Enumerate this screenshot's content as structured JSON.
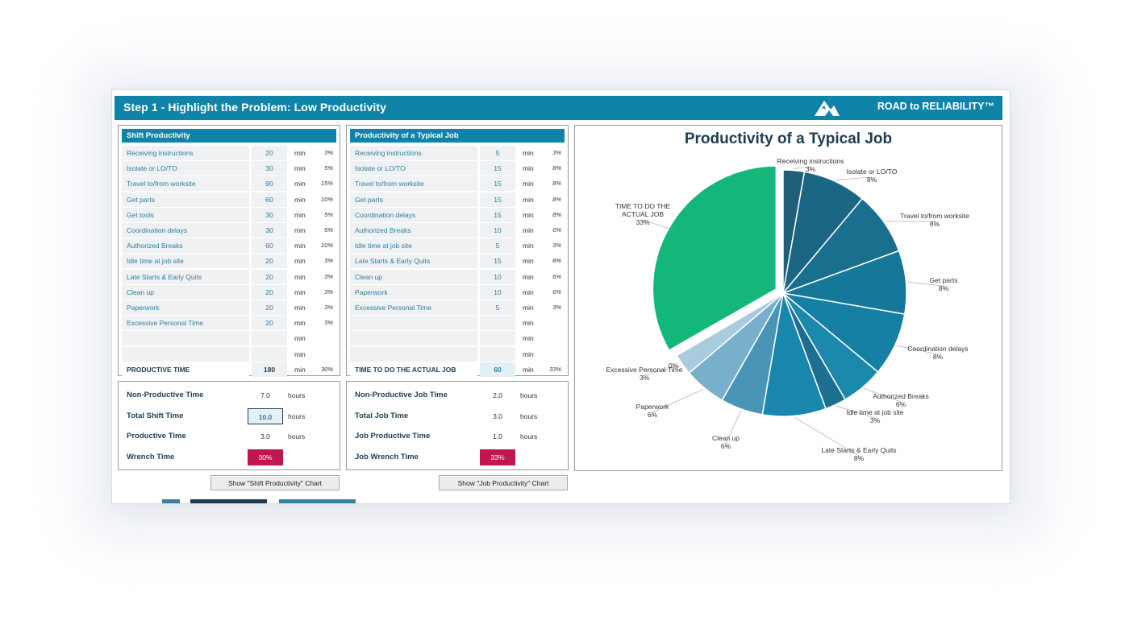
{
  "header": {
    "title": "Step 1 - Highlight the Problem: Low Productivity",
    "brand": "ROAD to RELIABILITY™",
    "logo_icon": "mountain-icon"
  },
  "shift": {
    "head": "Shift Productivity",
    "rows": [
      {
        "label": "Receiving instructions",
        "value": "20",
        "unit": "min",
        "pct": "3%"
      },
      {
        "label": "Isolate or LO/TO",
        "value": "30",
        "unit": "min",
        "pct": "5%"
      },
      {
        "label": "Travel to/from worksite",
        "value": "90",
        "unit": "min",
        "pct": "15%"
      },
      {
        "label": "Get parts",
        "value": "60",
        "unit": "min",
        "pct": "10%"
      },
      {
        "label": "Get tools",
        "value": "30",
        "unit": "min",
        "pct": "5%"
      },
      {
        "label": "Coordination delays",
        "value": "30",
        "unit": "min",
        "pct": "5%"
      },
      {
        "label": "Authorized Breaks",
        "value": "60",
        "unit": "min",
        "pct": "10%"
      },
      {
        "label": "Idle time at job site",
        "value": "20",
        "unit": "min",
        "pct": "3%"
      },
      {
        "label": "Late Starts & Early Quits",
        "value": "20",
        "unit": "min",
        "pct": "3%"
      },
      {
        "label": "Clean up",
        "value": "20",
        "unit": "min",
        "pct": "3%"
      },
      {
        "label": "Paperwork",
        "value": "20",
        "unit": "min",
        "pct": "3%"
      },
      {
        "label": "Excessive Personal Time",
        "value": "20",
        "unit": "min",
        "pct": "3%"
      },
      {
        "label": "",
        "value": "",
        "unit": "min",
        "pct": ""
      },
      {
        "label": "",
        "value": "",
        "unit": "min",
        "pct": ""
      }
    ],
    "total": {
      "label": "PRODUCTIVE TIME",
      "value": "180",
      "unit": "min",
      "pct": "30%"
    },
    "summary": [
      {
        "label": "Non-Productive Time",
        "value": "7.0",
        "unit": "hours"
      },
      {
        "label": "Total Shift Time",
        "value": "10.0",
        "unit": "hours"
      },
      {
        "label": "Productive Time",
        "value": "3.0",
        "unit": "hours"
      },
      {
        "label": "Wrench Time",
        "value": "30%",
        "unit": ""
      }
    ],
    "button": "Show \"Shift Productivity\" Chart"
  },
  "job": {
    "head": "Productivity of a Typical Job",
    "rows": [
      {
        "label": "Receiving instructions",
        "value": "5",
        "unit": "min",
        "pct": "3%"
      },
      {
        "label": "Isolate or LO/TO",
        "value": "15",
        "unit": "min",
        "pct": "8%"
      },
      {
        "label": "Travel to/from worksite",
        "value": "15",
        "unit": "min",
        "pct": "8%"
      },
      {
        "label": "Get parts",
        "value": "15",
        "unit": "min",
        "pct": "8%"
      },
      {
        "label": "Coordination delays",
        "value": "15",
        "unit": "min",
        "pct": "8%"
      },
      {
        "label": "Authorized Breaks",
        "value": "10",
        "unit": "min",
        "pct": "6%"
      },
      {
        "label": "Idle time at job site",
        "value": "5",
        "unit": "min",
        "pct": "3%"
      },
      {
        "label": "Late Starts & Early Quits",
        "value": "15",
        "unit": "min",
        "pct": "8%"
      },
      {
        "label": "Clean up",
        "value": "10",
        "unit": "min",
        "pct": "6%"
      },
      {
        "label": "Paperwork",
        "value": "10",
        "unit": "min",
        "pct": "6%"
      },
      {
        "label": "Excessive Personal Time",
        "value": "5",
        "unit": "min",
        "pct": "3%"
      },
      {
        "label": "",
        "value": "",
        "unit": "min",
        "pct": ""
      },
      {
        "label": "",
        "value": "",
        "unit": "min",
        "pct": ""
      },
      {
        "label": "",
        "value": "",
        "unit": "min",
        "pct": ""
      }
    ],
    "total": {
      "label": "TIME TO DO THE ACTUAL JOB",
      "value": "60",
      "unit": "min",
      "pct": "33%"
    },
    "summary": [
      {
        "label": "Non-Productive Job Time",
        "value": "2.0",
        "unit": "hours"
      },
      {
        "label": "Total Job Time",
        "value": "3.0",
        "unit": "hours"
      },
      {
        "label": "Job Productive Time",
        "value": "1.0",
        "unit": "hours"
      },
      {
        "label": "Job Wrench Time",
        "value": "33%",
        "unit": ""
      }
    ],
    "button": "Show \"Job Productivity\" Chart"
  },
  "colors": {
    "accent": "#0f84a8",
    "highlight": "#c0174e",
    "pie_green": "#14b77a"
  },
  "chart_data": {
    "type": "pie",
    "title": "Productivity of a Typical Job",
    "slices": [
      {
        "label": "Receiving instructions",
        "value": 5,
        "pct": "3%",
        "color": "#1f5f78"
      },
      {
        "label": "Isolate or LO/TO",
        "value": 15,
        "pct": "8%",
        "color": "#1a6684"
      },
      {
        "label": "Travel to/from worksite",
        "value": 15,
        "pct": "8%",
        "color": "#186f8e"
      },
      {
        "label": "Get parts",
        "value": 15,
        "pct": "8%",
        "color": "#167899"
      },
      {
        "label": "Coordination delays",
        "value": 15,
        "pct": "8%",
        "color": "#1580a3"
      },
      {
        "label": "Authorized Breaks",
        "value": 10,
        "pct": "6%",
        "color": "#1b89ac"
      },
      {
        "label": "Idle time at job site",
        "value": 5,
        "pct": "3%",
        "color": "#1d6f90"
      },
      {
        "label": "Late Starts & Early Quits",
        "value": 15,
        "pct": "8%",
        "color": "#1986ad"
      },
      {
        "label": "Clean up",
        "value": 10,
        "pct": "6%",
        "color": "#4a95b7"
      },
      {
        "label": "Paperwork",
        "value": 10,
        "pct": "6%",
        "color": "#78afcb"
      },
      {
        "label": "Excessive Personal Time",
        "value": 5,
        "pct": "3%",
        "color": "#a9cbde"
      },
      {
        "label": "",
        "value": 0.3,
        "pct": "0%",
        "color": "#cfe1ec"
      },
      {
        "label": "TIME TO DO THE ACTUAL JOB",
        "value": 60,
        "pct": "33%",
        "color": "#14b77a"
      }
    ]
  }
}
